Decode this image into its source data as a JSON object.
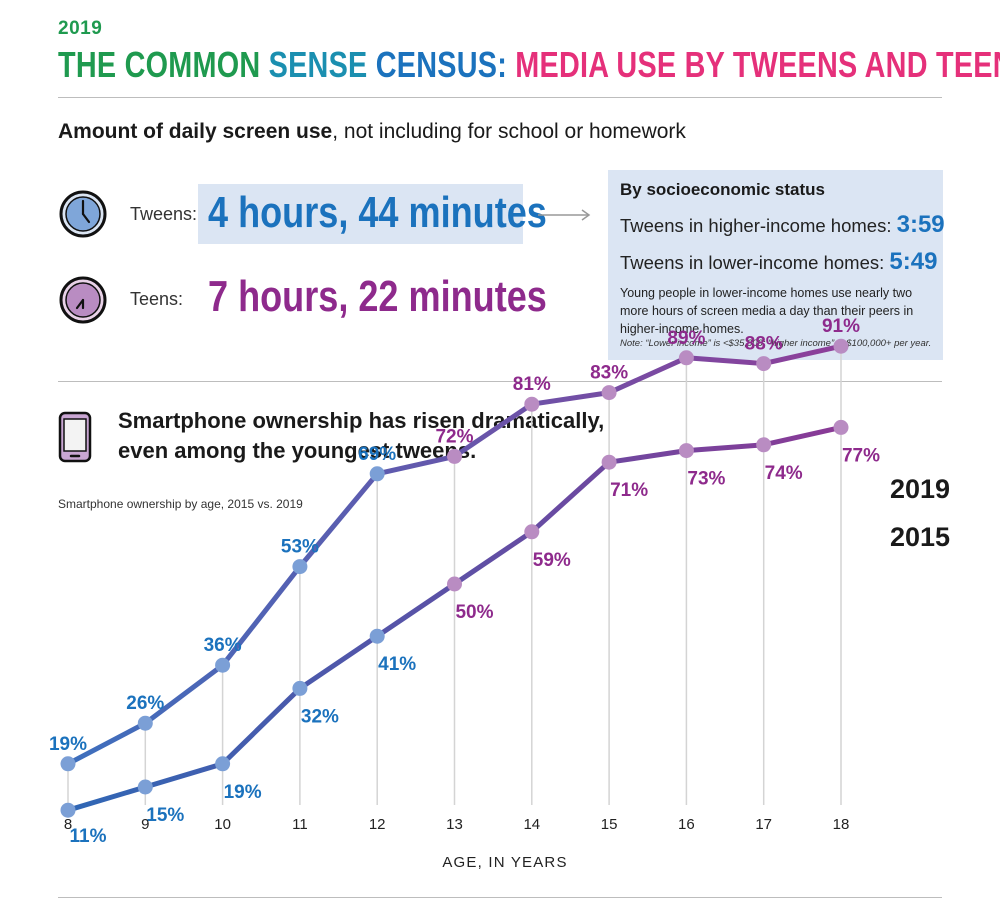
{
  "header": {
    "year": "2019",
    "title_part1": "THE COMMON SENSE CENSUS:",
    "title_part2": "MEDIA USE BY TWEENS AND TEENS"
  },
  "screen_use": {
    "title_bold": "Amount of daily screen use",
    "title_rest": ", not including for school or homework",
    "tweens_label": "Tweens:",
    "tweens_value": "4 hours, 44 minutes",
    "teens_label": "Teens:",
    "teens_value": "7 hours, 22 minutes"
  },
  "ses": {
    "title": "By socioeconomic status",
    "higher_label": "Tweens in higher-income homes:",
    "higher_value": "3:59",
    "lower_label": "Tweens in lower-income homes:",
    "lower_value": "5:49",
    "description": "Young people in lower-income homes use nearly two more hours of screen media a day than their peers in higher-income homes.",
    "note": "Note: “Lower income” is <$35,000; “higher income” is $100,000+ per year."
  },
  "smartphone": {
    "title_line1": "Smartphone ownership has risen dramatically,",
    "title_line2": "even among the youngest tweens."
  },
  "colors": {
    "green": "#1f9a4f",
    "teal": "#1b8fb0",
    "pink": "#e5307a",
    "blue": "#1b72bd",
    "purple": "#8e2a8c",
    "line2019": "#6a4fa3",
    "line2015": "#6e4c9e"
  },
  "chart_data": {
    "type": "line",
    "title": "Smartphone ownership by age, 2015 vs. 2019",
    "xlabel": "AGE, IN YEARS",
    "ylabel": "",
    "x": [
      8,
      9,
      10,
      11,
      12,
      13,
      14,
      15,
      16,
      17,
      18
    ],
    "x_tick_labels": [
      "8",
      "9",
      "10",
      "11",
      "12",
      "13",
      "14",
      "15",
      "16",
      "17",
      "18"
    ],
    "ylim": [
      0,
      100
    ],
    "grid": false,
    "legend": "right",
    "series": [
      {
        "name": "2019",
        "values": [
          19,
          26,
          36,
          53,
          69,
          72,
          81,
          83,
          89,
          88,
          91
        ],
        "labels": [
          "19%",
          "26%",
          "36%",
          "53%",
          "69%",
          "72%",
          "81%",
          "83%",
          "89%",
          "88%",
          "91%"
        ]
      },
      {
        "name": "2015",
        "values": [
          11,
          15,
          19,
          32,
          41,
          50,
          59,
          71,
          73,
          74,
          77
        ],
        "labels": [
          "11%",
          "15%",
          "19%",
          "32%",
          "41%",
          "50%",
          "59%",
          "71%",
          "73%",
          "74%",
          "77%"
        ]
      }
    ]
  }
}
